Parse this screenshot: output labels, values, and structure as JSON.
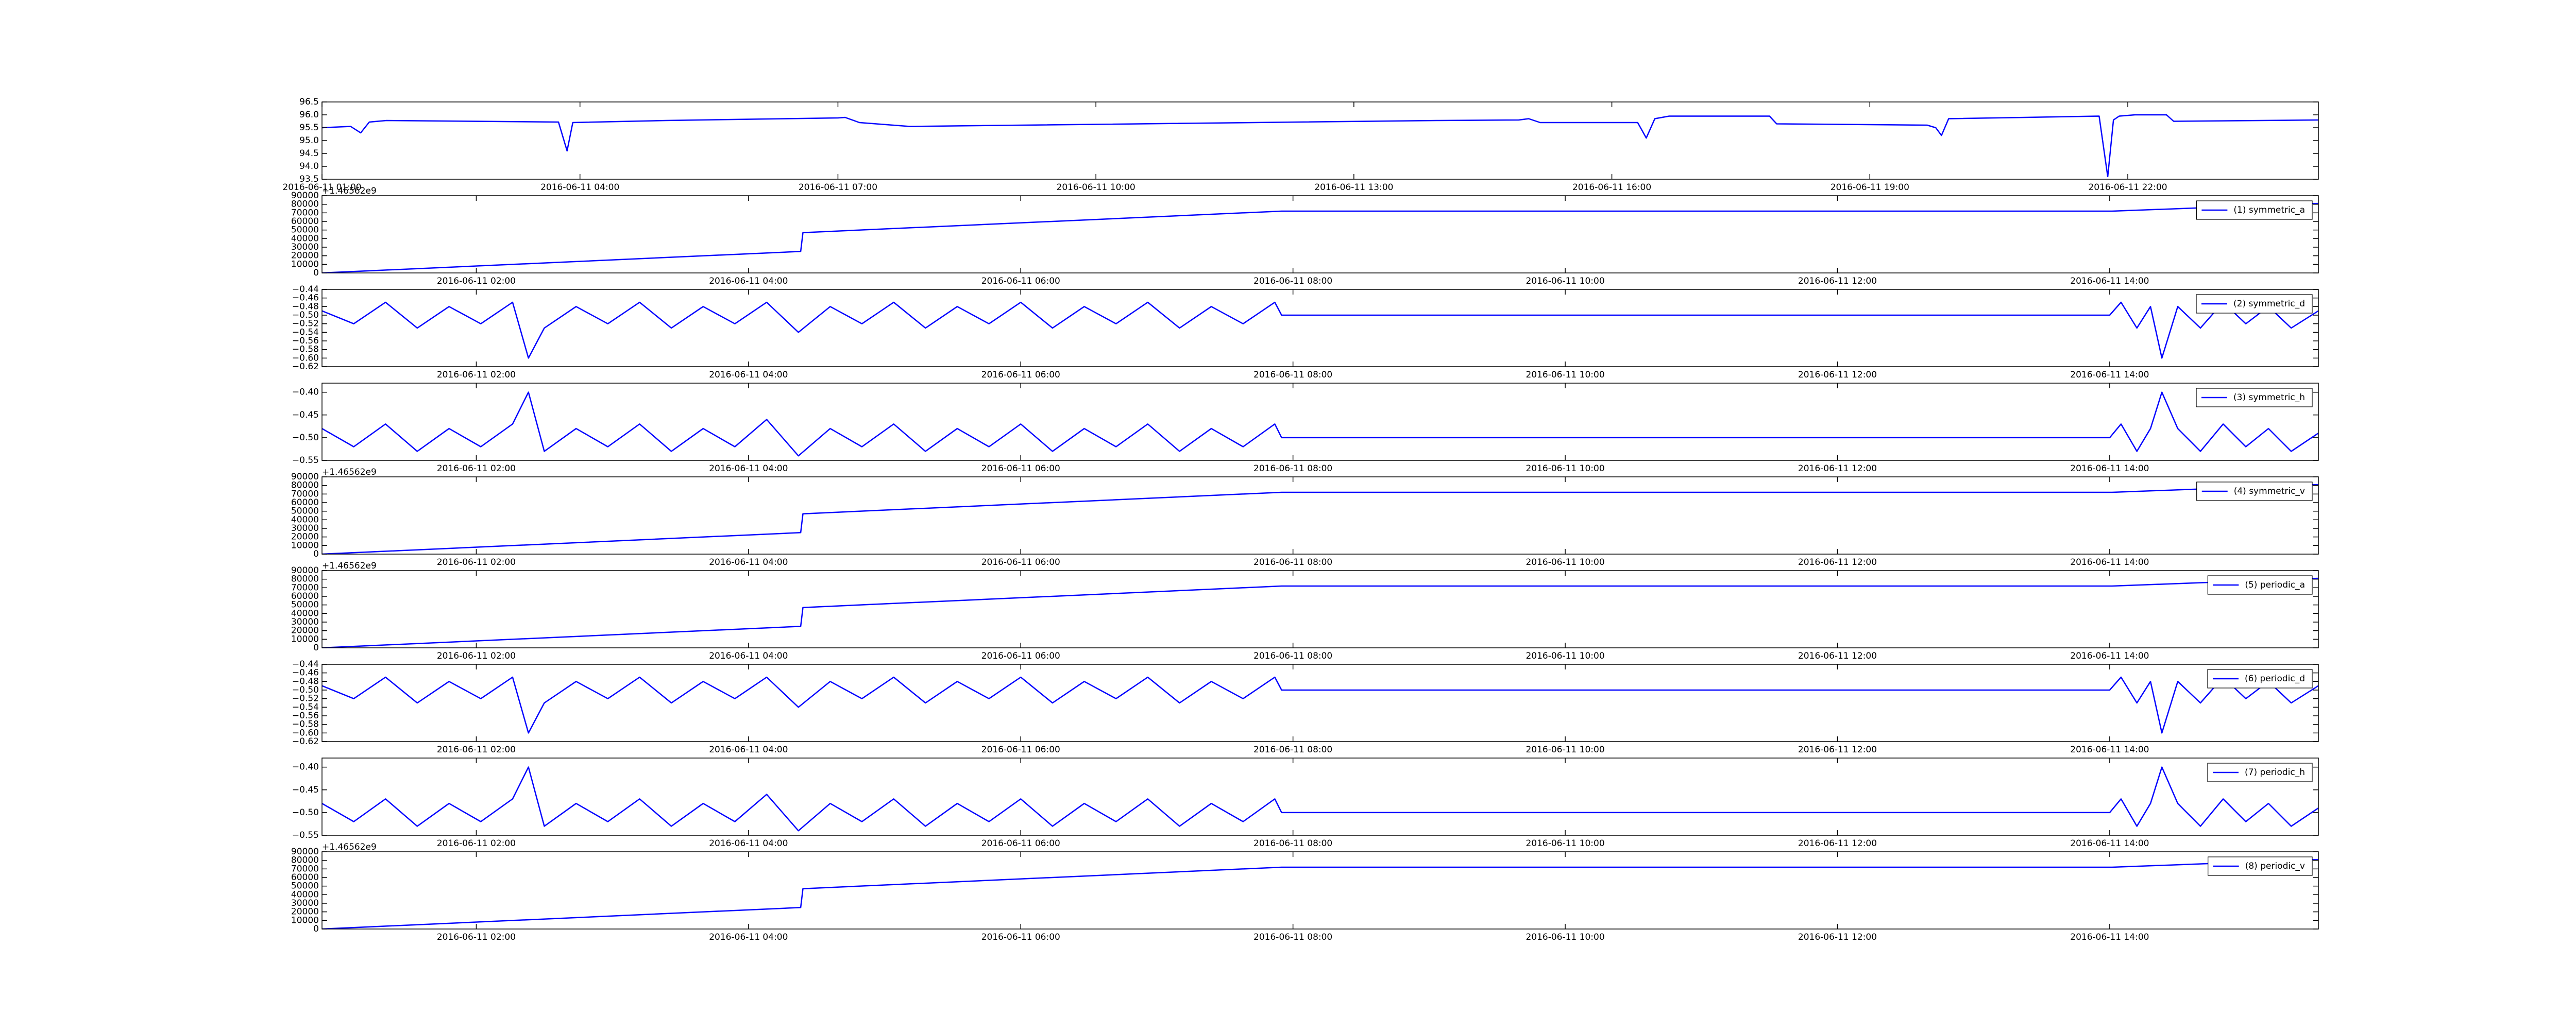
{
  "chart_data": [
    {
      "type": "line",
      "color": "#0000ff",
      "x": [
        "2016-06-11 01:00",
        "2016-06-11 01:20",
        "2016-06-11 01:27",
        "2016-06-11 01:33",
        "2016-06-11 01:45",
        "2016-06-11 03:45",
        "2016-06-11 03:51",
        "2016-06-11 03:55",
        "2016-06-11 05:00",
        "2016-06-11 07:00",
        "2016-06-11 07:05",
        "2016-06-11 07:15",
        "2016-06-11 07:50",
        "2016-06-11 13:58",
        "2016-06-11 14:55",
        "2016-06-11 15:02",
        "2016-06-11 15:10",
        "2016-06-11 16:18",
        "2016-06-11 16:24",
        "2016-06-11 16:30",
        "2016-06-11 16:40",
        "2016-06-11 17:50",
        "2016-06-11 17:55",
        "2016-06-11 19:40",
        "2016-06-11 19:46",
        "2016-06-11 19:50",
        "2016-06-11 19:55",
        "2016-06-11 21:40",
        "2016-06-11 21:46",
        "2016-06-11 21:50",
        "2016-06-11 21:54",
        "2016-06-11 22:05",
        "2016-06-11 22:27",
        "2016-06-11 22:32",
        "2016-06-12 00:13"
      ],
      "values": [
        95.5,
        95.55,
        95.3,
        95.72,
        95.78,
        95.72,
        94.6,
        95.7,
        95.78,
        95.88,
        95.9,
        95.7,
        95.55,
        95.78,
        95.8,
        95.85,
        95.7,
        95.7,
        95.1,
        95.85,
        95.95,
        95.95,
        95.65,
        95.6,
        95.5,
        95.2,
        95.85,
        95.95,
        93.6,
        95.8,
        95.95,
        96.0,
        96.0,
        95.75,
        95.8
      ],
      "xlim": [
        "2016-06-11 01:00",
        "2016-06-12 00:13"
      ],
      "xticks": [
        "2016-06-11 01:00",
        "2016-06-11 04:00",
        "2016-06-11 07:00",
        "2016-06-11 10:00",
        "2016-06-11 13:00",
        "2016-06-11 16:00",
        "2016-06-11 19:00",
        "2016-06-11 22:00"
      ],
      "ylim": [
        93.5,
        96.5
      ],
      "yticks": [
        93.5,
        {
          "value": 94,
          "label": "94.0"
        },
        94.5,
        {
          "value": 95,
          "label": "95.0"
        },
        95.5,
        {
          "value": 96,
          "label": "96.0"
        },
        96.5
      ]
    },
    {
      "type": "line",
      "name": "(1) symmetric_a",
      "color": "#0000ff",
      "legend": "upper right",
      "offset_text": "+1.46562e9",
      "x": [
        "2016-06-11 00:52",
        "2016-06-11 04:23",
        "2016-06-11 04:24",
        "2016-06-11 07:55",
        "2016-06-11 14:01",
        "2016-06-11 15:32"
      ],
      "values": [
        0,
        25000,
        47000,
        72000,
        72000,
        81000
      ],
      "xlim": [
        "2016-06-11 00:52",
        "2016-06-11 15:32"
      ],
      "xticks": [
        "2016-06-11 02:00",
        "2016-06-11 04:00",
        "2016-06-11 06:00",
        "2016-06-11 08:00",
        "2016-06-11 10:00",
        "2016-06-11 12:00",
        "2016-06-11 14:00"
      ],
      "ylim": [
        0,
        90000
      ],
      "yticks": [
        0,
        10000,
        20000,
        30000,
        40000,
        50000,
        60000,
        70000,
        80000,
        90000
      ]
    },
    {
      "type": "line",
      "name": "(2) symmetric_d",
      "color": "#0000ff",
      "legend": "upper right",
      "x": [
        "2016-06-11 00:52",
        "2016-06-11 01:06",
        "2016-06-11 01:20",
        "2016-06-11 01:34",
        "2016-06-11 01:48",
        "2016-06-11 02:02",
        "2016-06-11 02:16",
        "2016-06-11 02:23",
        "2016-06-11 02:30",
        "2016-06-11 02:44",
        "2016-06-11 02:58",
        "2016-06-11 03:12",
        "2016-06-11 03:26",
        "2016-06-11 03:40",
        "2016-06-11 03:54",
        "2016-06-11 04:08",
        "2016-06-11 04:22",
        "2016-06-11 04:36",
        "2016-06-11 04:50",
        "2016-06-11 05:04",
        "2016-06-11 05:18",
        "2016-06-11 05:32",
        "2016-06-11 05:46",
        "2016-06-11 06:00",
        "2016-06-11 06:14",
        "2016-06-11 06:28",
        "2016-06-11 06:42",
        "2016-06-11 06:56",
        "2016-06-11 07:10",
        "2016-06-11 07:24",
        "2016-06-11 07:38",
        "2016-06-11 07:52",
        "2016-06-11 07:55",
        "2016-06-11 14:00",
        "2016-06-11 14:05",
        "2016-06-11 14:12",
        "2016-06-11 14:18",
        "2016-06-11 14:23",
        "2016-06-11 14:30",
        "2016-06-11 14:40",
        "2016-06-11 14:50",
        "2016-06-11 15:00",
        "2016-06-11 15:10",
        "2016-06-11 15:20",
        "2016-06-11 15:32"
      ],
      "values": [
        -0.49,
        -0.52,
        -0.47,
        -0.53,
        -0.48,
        -0.52,
        -0.47,
        -0.6,
        -0.53,
        -0.48,
        -0.52,
        -0.47,
        -0.53,
        -0.48,
        -0.52,
        -0.47,
        -0.54,
        -0.48,
        -0.52,
        -0.47,
        -0.53,
        -0.48,
        -0.52,
        -0.47,
        -0.53,
        -0.48,
        -0.52,
        -0.47,
        -0.53,
        -0.48,
        -0.52,
        -0.47,
        -0.5,
        -0.5,
        -0.47,
        -0.53,
        -0.48,
        -0.6,
        -0.48,
        -0.53,
        -0.47,
        -0.52,
        -0.48,
        -0.53,
        -0.49
      ],
      "xlim": [
        "2016-06-11 00:52",
        "2016-06-11 15:32"
      ],
      "xticks": [
        "2016-06-11 02:00",
        "2016-06-11 04:00",
        "2016-06-11 06:00",
        "2016-06-11 08:00",
        "2016-06-11 10:00",
        "2016-06-11 12:00",
        "2016-06-11 14:00"
      ],
      "ylim": [
        -0.62,
        -0.44
      ],
      "yticks": [
        {
          "value": -0.62,
          "label": "−0.62"
        },
        {
          "value": -0.6,
          "label": "−0.60"
        },
        {
          "value": -0.58,
          "label": "−0.58"
        },
        {
          "value": -0.56,
          "label": "−0.56"
        },
        {
          "value": -0.54,
          "label": "−0.54"
        },
        {
          "value": -0.52,
          "label": "−0.52"
        },
        {
          "value": -0.5,
          "label": "−0.50"
        },
        {
          "value": -0.48,
          "label": "−0.48"
        },
        {
          "value": -0.46,
          "label": "−0.46"
        },
        {
          "value": -0.44,
          "label": "−0.44"
        }
      ]
    },
    {
      "type": "line",
      "name": "(3) symmetric_h",
      "color": "#0000ff",
      "legend": "upper right",
      "x": [
        "2016-06-11 00:52",
        "2016-06-11 01:06",
        "2016-06-11 01:20",
        "2016-06-11 01:34",
        "2016-06-11 01:48",
        "2016-06-11 02:02",
        "2016-06-11 02:16",
        "2016-06-11 02:23",
        "2016-06-11 02:30",
        "2016-06-11 02:44",
        "2016-06-11 02:58",
        "2016-06-11 03:12",
        "2016-06-11 03:26",
        "2016-06-11 03:40",
        "2016-06-11 03:54",
        "2016-06-11 04:08",
        "2016-06-11 04:22",
        "2016-06-11 04:36",
        "2016-06-11 04:50",
        "2016-06-11 05:04",
        "2016-06-11 05:18",
        "2016-06-11 05:32",
        "2016-06-11 05:46",
        "2016-06-11 06:00",
        "2016-06-11 06:14",
        "2016-06-11 06:28",
        "2016-06-11 06:42",
        "2016-06-11 06:56",
        "2016-06-11 07:10",
        "2016-06-11 07:24",
        "2016-06-11 07:38",
        "2016-06-11 07:52",
        "2016-06-11 07:55",
        "2016-06-11 14:00",
        "2016-06-11 14:05",
        "2016-06-11 14:12",
        "2016-06-11 14:18",
        "2016-06-11 14:23",
        "2016-06-11 14:30",
        "2016-06-11 14:40",
        "2016-06-11 14:50",
        "2016-06-11 15:00",
        "2016-06-11 15:10",
        "2016-06-11 15:20",
        "2016-06-11 15:32"
      ],
      "values": [
        -0.48,
        -0.52,
        -0.47,
        -0.53,
        -0.48,
        -0.52,
        -0.47,
        -0.4,
        -0.53,
        -0.48,
        -0.52,
        -0.47,
        -0.53,
        -0.48,
        -0.52,
        -0.46,
        -0.54,
        -0.48,
        -0.52,
        -0.47,
        -0.53,
        -0.48,
        -0.52,
        -0.47,
        -0.53,
        -0.48,
        -0.52,
        -0.47,
        -0.53,
        -0.48,
        -0.52,
        -0.47,
        -0.5,
        -0.5,
        -0.47,
        -0.53,
        -0.48,
        -0.4,
        -0.48,
        -0.53,
        -0.47,
        -0.52,
        -0.48,
        -0.53,
        -0.49
      ],
      "xlim": [
        "2016-06-11 00:52",
        "2016-06-11 15:32"
      ],
      "xticks": [
        "2016-06-11 02:00",
        "2016-06-11 04:00",
        "2016-06-11 06:00",
        "2016-06-11 08:00",
        "2016-06-11 10:00",
        "2016-06-11 12:00",
        "2016-06-11 14:00"
      ],
      "ylim": [
        -0.55,
        -0.38
      ],
      "yticks": [
        {
          "value": -0.55,
          "label": "−0.55"
        },
        {
          "value": -0.5,
          "label": "−0.50"
        },
        {
          "value": -0.45,
          "label": "−0.45"
        },
        {
          "value": -0.4,
          "label": "−0.40"
        }
      ]
    },
    {
      "type": "line",
      "name": "(4) symmetric_v",
      "color": "#0000ff",
      "legend": "upper right",
      "offset_text": "+1.46562e9",
      "x": [
        "2016-06-11 00:52",
        "2016-06-11 04:23",
        "2016-06-11 04:24",
        "2016-06-11 07:55",
        "2016-06-11 14:01",
        "2016-06-11 15:32"
      ],
      "values": [
        0,
        25000,
        47000,
        72000,
        72000,
        81000
      ],
      "xlim": [
        "2016-06-11 00:52",
        "2016-06-11 15:32"
      ],
      "xticks": [
        "2016-06-11 02:00",
        "2016-06-11 04:00",
        "2016-06-11 06:00",
        "2016-06-11 08:00",
        "2016-06-11 10:00",
        "2016-06-11 12:00",
        "2016-06-11 14:00"
      ],
      "ylim": [
        0,
        90000
      ],
      "yticks": [
        0,
        10000,
        20000,
        30000,
        40000,
        50000,
        60000,
        70000,
        80000,
        90000
      ]
    },
    {
      "type": "line",
      "name": "(5) periodic_a",
      "color": "#0000ff",
      "legend": "upper right",
      "offset_text": "+1.46562e9",
      "x": [
        "2016-06-11 00:52",
        "2016-06-11 04:23",
        "2016-06-11 04:24",
        "2016-06-11 07:55",
        "2016-06-11 14:01",
        "2016-06-11 15:32"
      ],
      "values": [
        0,
        25000,
        47000,
        72000,
        72000,
        81000
      ],
      "xlim": [
        "2016-06-11 00:52",
        "2016-06-11 15:32"
      ],
      "xticks": [
        "2016-06-11 02:00",
        "2016-06-11 04:00",
        "2016-06-11 06:00",
        "2016-06-11 08:00",
        "2016-06-11 10:00",
        "2016-06-11 12:00",
        "2016-06-11 14:00"
      ],
      "ylim": [
        0,
        90000
      ],
      "yticks": [
        0,
        10000,
        20000,
        30000,
        40000,
        50000,
        60000,
        70000,
        80000,
        90000
      ]
    },
    {
      "type": "line",
      "name": "(6) periodic_d",
      "color": "#0000ff",
      "legend": "upper right",
      "x": [
        "2016-06-11 00:52",
        "2016-06-11 01:06",
        "2016-06-11 01:20",
        "2016-06-11 01:34",
        "2016-06-11 01:48",
        "2016-06-11 02:02",
        "2016-06-11 02:16",
        "2016-06-11 02:23",
        "2016-06-11 02:30",
        "2016-06-11 02:44",
        "2016-06-11 02:58",
        "2016-06-11 03:12",
        "2016-06-11 03:26",
        "2016-06-11 03:40",
        "2016-06-11 03:54",
        "2016-06-11 04:08",
        "2016-06-11 04:22",
        "2016-06-11 04:36",
        "2016-06-11 04:50",
        "2016-06-11 05:04",
        "2016-06-11 05:18",
        "2016-06-11 05:32",
        "2016-06-11 05:46",
        "2016-06-11 06:00",
        "2016-06-11 06:14",
        "2016-06-11 06:28",
        "2016-06-11 06:42",
        "2016-06-11 06:56",
        "2016-06-11 07:10",
        "2016-06-11 07:24",
        "2016-06-11 07:38",
        "2016-06-11 07:52",
        "2016-06-11 07:55",
        "2016-06-11 14:00",
        "2016-06-11 14:05",
        "2016-06-11 14:12",
        "2016-06-11 14:18",
        "2016-06-11 14:23",
        "2016-06-11 14:30",
        "2016-06-11 14:40",
        "2016-06-11 14:50",
        "2016-06-11 15:00",
        "2016-06-11 15:10",
        "2016-06-11 15:20",
        "2016-06-11 15:32"
      ],
      "values": [
        -0.49,
        -0.52,
        -0.47,
        -0.53,
        -0.48,
        -0.52,
        -0.47,
        -0.6,
        -0.53,
        -0.48,
        -0.52,
        -0.47,
        -0.53,
        -0.48,
        -0.52,
        -0.47,
        -0.54,
        -0.48,
        -0.52,
        -0.47,
        -0.53,
        -0.48,
        -0.52,
        -0.47,
        -0.53,
        -0.48,
        -0.52,
        -0.47,
        -0.53,
        -0.48,
        -0.52,
        -0.47,
        -0.5,
        -0.5,
        -0.47,
        -0.53,
        -0.48,
        -0.6,
        -0.48,
        -0.53,
        -0.47,
        -0.52,
        -0.48,
        -0.53,
        -0.49
      ],
      "xlim": [
        "2016-06-11 00:52",
        "2016-06-11 15:32"
      ],
      "xticks": [
        "2016-06-11 02:00",
        "2016-06-11 04:00",
        "2016-06-11 06:00",
        "2016-06-11 08:00",
        "2016-06-11 10:00",
        "2016-06-11 12:00",
        "2016-06-11 14:00"
      ],
      "ylim": [
        -0.62,
        -0.44
      ],
      "yticks": [
        {
          "value": -0.62,
          "label": "−0.62"
        },
        {
          "value": -0.6,
          "label": "−0.60"
        },
        {
          "value": -0.58,
          "label": "−0.58"
        },
        {
          "value": -0.56,
          "label": "−0.56"
        },
        {
          "value": -0.54,
          "label": "−0.54"
        },
        {
          "value": -0.52,
          "label": "−0.52"
        },
        {
          "value": -0.5,
          "label": "−0.50"
        },
        {
          "value": -0.48,
          "label": "−0.48"
        },
        {
          "value": -0.46,
          "label": "−0.46"
        },
        {
          "value": -0.44,
          "label": "−0.44"
        }
      ]
    },
    {
      "type": "line",
      "name": "(7) periodic_h",
      "color": "#0000ff",
      "legend": "upper right",
      "x": [
        "2016-06-11 00:52",
        "2016-06-11 01:06",
        "2016-06-11 01:20",
        "2016-06-11 01:34",
        "2016-06-11 01:48",
        "2016-06-11 02:02",
        "2016-06-11 02:16",
        "2016-06-11 02:23",
        "2016-06-11 02:30",
        "2016-06-11 02:44",
        "2016-06-11 02:58",
        "2016-06-11 03:12",
        "2016-06-11 03:26",
        "2016-06-11 03:40",
        "2016-06-11 03:54",
        "2016-06-11 04:08",
        "2016-06-11 04:22",
        "2016-06-11 04:36",
        "2016-06-11 04:50",
        "2016-06-11 05:04",
        "2016-06-11 05:18",
        "2016-06-11 05:32",
        "2016-06-11 05:46",
        "2016-06-11 06:00",
        "2016-06-11 06:14",
        "2016-06-11 06:28",
        "2016-06-11 06:42",
        "2016-06-11 06:56",
        "2016-06-11 07:10",
        "2016-06-11 07:24",
        "2016-06-11 07:38",
        "2016-06-11 07:52",
        "2016-06-11 07:55",
        "2016-06-11 14:00",
        "2016-06-11 14:05",
        "2016-06-11 14:12",
        "2016-06-11 14:18",
        "2016-06-11 14:23",
        "2016-06-11 14:30",
        "2016-06-11 14:40",
        "2016-06-11 14:50",
        "2016-06-11 15:00",
        "2016-06-11 15:10",
        "2016-06-11 15:20",
        "2016-06-11 15:32"
      ],
      "values": [
        -0.48,
        -0.52,
        -0.47,
        -0.53,
        -0.48,
        -0.52,
        -0.47,
        -0.4,
        -0.53,
        -0.48,
        -0.52,
        -0.47,
        -0.53,
        -0.48,
        -0.52,
        -0.46,
        -0.54,
        -0.48,
        -0.52,
        -0.47,
        -0.53,
        -0.48,
        -0.52,
        -0.47,
        -0.53,
        -0.48,
        -0.52,
        -0.47,
        -0.53,
        -0.48,
        -0.52,
        -0.47,
        -0.5,
        -0.5,
        -0.47,
        -0.53,
        -0.48,
        -0.4,
        -0.48,
        -0.53,
        -0.47,
        -0.52,
        -0.48,
        -0.53,
        -0.49
      ],
      "xlim": [
        "2016-06-11 00:52",
        "2016-06-11 15:32"
      ],
      "xticks": [
        "2016-06-11 02:00",
        "2016-06-11 04:00",
        "2016-06-11 06:00",
        "2016-06-11 08:00",
        "2016-06-11 10:00",
        "2016-06-11 12:00",
        "2016-06-11 14:00"
      ],
      "ylim": [
        -0.55,
        -0.38
      ],
      "yticks": [
        {
          "value": -0.55,
          "label": "−0.55"
        },
        {
          "value": -0.5,
          "label": "−0.50"
        },
        {
          "value": -0.45,
          "label": "−0.45"
        },
        {
          "value": -0.4,
          "label": "−0.40"
        }
      ]
    },
    {
      "type": "line",
      "name": "(8) periodic_v",
      "color": "#0000ff",
      "legend": "upper right",
      "offset_text": "+1.46562e9",
      "x": [
        "2016-06-11 00:52",
        "2016-06-11 04:23",
        "2016-06-11 04:24",
        "2016-06-11 07:55",
        "2016-06-11 14:01",
        "2016-06-11 15:32"
      ],
      "values": [
        0,
        25000,
        47000,
        72000,
        72000,
        81000
      ],
      "xlim": [
        "2016-06-11 00:52",
        "2016-06-11 15:32"
      ],
      "xticks": [
        "2016-06-11 02:00",
        "2016-06-11 04:00",
        "2016-06-11 06:00",
        "2016-06-11 08:00",
        "2016-06-11 10:00",
        "2016-06-11 12:00",
        "2016-06-11 14:00"
      ],
      "ylim": [
        0,
        90000
      ],
      "yticks": [
        0,
        10000,
        20000,
        30000,
        40000,
        50000,
        60000,
        70000,
        80000,
        90000
      ]
    }
  ]
}
